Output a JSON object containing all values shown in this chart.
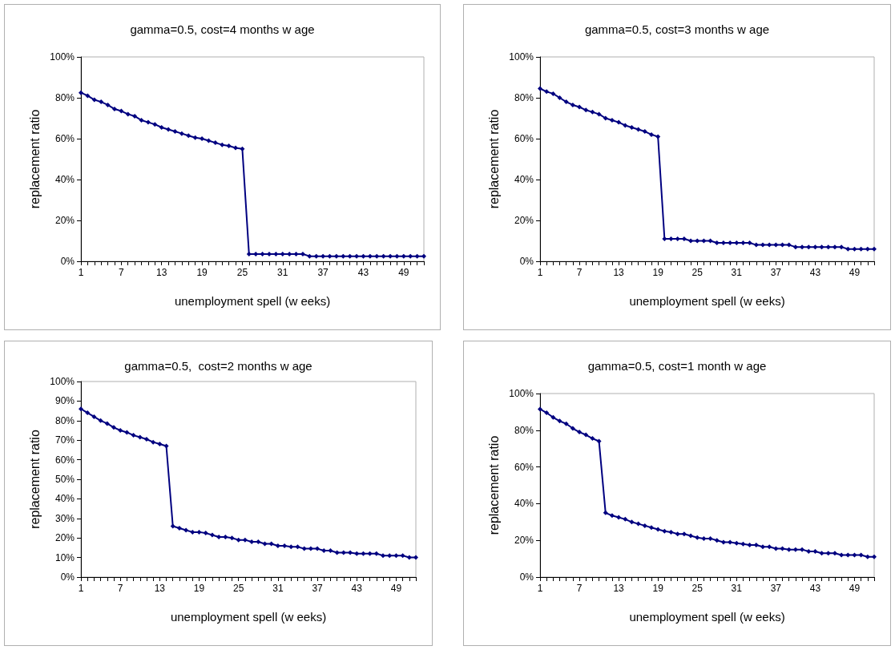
{
  "chart_data": [
    {
      "type": "line",
      "title": "gamma=0.5, cost=4 months w age",
      "xlabel": "unemployment spell (w eeks)",
      "ylabel": "replacement ratio",
      "categories": [
        "1",
        null,
        null,
        null,
        null,
        null,
        "7",
        null,
        null,
        null,
        null,
        null,
        "13",
        null,
        null,
        null,
        null,
        null,
        "19",
        null,
        null,
        null,
        null,
        null,
        "25",
        null,
        null,
        null,
        null,
        null,
        "31",
        null,
        null,
        null,
        null,
        null,
        "37",
        null,
        null,
        null,
        null,
        null,
        "43",
        null,
        null,
        null,
        null,
        null,
        "49",
        null,
        null,
        null
      ],
      "series": [
        {
          "color": "#000080",
          "values": [
            82.5,
            81,
            79,
            78,
            76.5,
            74.5,
            73.5,
            72,
            71,
            69,
            68,
            67,
            65.5,
            64.5,
            63.5,
            62.5,
            61.5,
            60.5,
            60,
            59,
            58,
            57,
            56.5,
            55.5,
            55,
            3.5,
            3.5,
            3.5,
            3.5,
            3.5,
            3.5,
            3.5,
            3.5,
            3.5,
            2.5,
            2.5,
            2.5,
            2.5,
            2.5,
            2.5,
            2.5,
            2.5,
            2.5,
            2.5,
            2.5,
            2.5,
            2.5,
            2.5,
            2.5,
            2.5,
            2.5,
            2.5
          ]
        }
      ],
      "ylim": [
        0,
        100
      ],
      "yticks": [
        {
          "value": 0,
          "label": "0%"
        },
        {
          "value": 20,
          "label": "20%"
        },
        {
          "value": 40,
          "label": "40%"
        },
        {
          "value": 60,
          "label": "60%"
        },
        {
          "value": 80,
          "label": "80%"
        },
        {
          "value": 100,
          "label": "100%"
        }
      ],
      "grid": false,
      "marker": "diamond",
      "line_style": "solid"
    },
    {
      "type": "line",
      "title": "gamma=0.5, cost=3 months w age",
      "xlabel": "unemployment spell (w eeks)",
      "ylabel": "replacement ratio",
      "categories": [
        "1",
        null,
        null,
        null,
        null,
        null,
        "7",
        null,
        null,
        null,
        null,
        null,
        "13",
        null,
        null,
        null,
        null,
        null,
        "19",
        null,
        null,
        null,
        null,
        null,
        "25",
        null,
        null,
        null,
        null,
        null,
        "31",
        null,
        null,
        null,
        null,
        null,
        "37",
        null,
        null,
        null,
        null,
        null,
        "43",
        null,
        null,
        null,
        null,
        null,
        "49",
        null,
        null,
        null
      ],
      "series": [
        {
          "color": "#000080",
          "values": [
            84.5,
            83,
            82,
            80,
            78,
            76.5,
            75.5,
            74,
            73,
            72,
            70,
            69,
            68,
            66.5,
            65.5,
            64.5,
            63.5,
            62,
            61,
            11,
            11,
            11,
            11,
            10,
            10,
            10,
            10,
            9,
            9,
            9,
            9,
            9,
            9,
            8,
            8,
            8,
            8,
            8,
            8,
            7,
            7,
            7,
            7,
            7,
            7,
            7,
            7,
            6,
            6,
            6,
            6,
            6
          ]
        }
      ],
      "ylim": [
        0,
        100
      ],
      "yticks": [
        {
          "value": 0,
          "label": "0%"
        },
        {
          "value": 20,
          "label": "20%"
        },
        {
          "value": 40,
          "label": "40%"
        },
        {
          "value": 60,
          "label": "60%"
        },
        {
          "value": 80,
          "label": "80%"
        },
        {
          "value": 100,
          "label": "100%"
        }
      ],
      "grid": false,
      "marker": "diamond",
      "line_style": "solid"
    },
    {
      "type": "line",
      "title": "gamma=0.5,  cost=2 months w age",
      "xlabel": "unemployment spell (w eeks)",
      "ylabel": "replacement ratio",
      "categories": [
        "1",
        null,
        null,
        null,
        null,
        null,
        "7",
        null,
        null,
        null,
        null,
        null,
        "13",
        null,
        null,
        null,
        null,
        null,
        "19",
        null,
        null,
        null,
        null,
        null,
        "25",
        null,
        null,
        null,
        null,
        null,
        "31",
        null,
        null,
        null,
        null,
        null,
        "37",
        null,
        null,
        null,
        null,
        null,
        "43",
        null,
        null,
        null,
        null,
        null,
        "49",
        null,
        null,
        null
      ],
      "series": [
        {
          "color": "#000080",
          "values": [
            86,
            84,
            82,
            80,
            78.5,
            76.5,
            75,
            74,
            72.5,
            71.5,
            70.5,
            69,
            68,
            67,
            26,
            25,
            24,
            23,
            23,
            22.5,
            21.5,
            20.5,
            20.5,
            20,
            19,
            19,
            18,
            18,
            17,
            17,
            16,
            16,
            15.5,
            15.5,
            14.5,
            14.5,
            14.5,
            13.5,
            13.5,
            12.5,
            12.5,
            12.5,
            12,
            12,
            12,
            12,
            11,
            11,
            11,
            11,
            10,
            10
          ]
        }
      ],
      "ylim": [
        0,
        100
      ],
      "yticks": [
        {
          "value": 0,
          "label": "0%"
        },
        {
          "value": 10,
          "label": "10%"
        },
        {
          "value": 20,
          "label": "20%"
        },
        {
          "value": 30,
          "label": "30%"
        },
        {
          "value": 40,
          "label": "40%"
        },
        {
          "value": 50,
          "label": "50%"
        },
        {
          "value": 60,
          "label": "60%"
        },
        {
          "value": 70,
          "label": "70%"
        },
        {
          "value": 80,
          "label": "80%"
        },
        {
          "value": 90,
          "label": "90%"
        },
        {
          "value": 100,
          "label": "100%"
        }
      ],
      "grid": false,
      "marker": "diamond",
      "line_style": "solid"
    },
    {
      "type": "line",
      "title": "gamma=0.5, cost=1 month w age",
      "xlabel": "unemployment spell (w eeks)",
      "ylabel": "replacement ratio",
      "categories": [
        "1",
        null,
        null,
        null,
        null,
        null,
        "7",
        null,
        null,
        null,
        null,
        null,
        "13",
        null,
        null,
        null,
        null,
        null,
        "19",
        null,
        null,
        null,
        null,
        null,
        "25",
        null,
        null,
        null,
        null,
        null,
        "31",
        null,
        null,
        null,
        null,
        null,
        "37",
        null,
        null,
        null,
        null,
        null,
        "43",
        null,
        null,
        null,
        null,
        null,
        "49",
        null,
        null,
        null
      ],
      "series": [
        {
          "color": "#000080",
          "values": [
            91.5,
            89.5,
            87,
            85,
            83.5,
            81,
            79,
            77.5,
            75.5,
            74,
            35,
            33.5,
            32.5,
            31.5,
            30,
            29,
            28,
            27,
            26,
            25,
            24.5,
            23.5,
            23.5,
            22.5,
            21.5,
            21,
            21,
            20,
            19,
            19,
            18.5,
            18,
            17.5,
            17.5,
            16.5,
            16.5,
            15.5,
            15.5,
            15,
            15,
            15,
            14,
            14,
            13,
            13,
            13,
            12,
            12,
            12,
            12,
            11,
            11
          ]
        }
      ],
      "ylim": [
        0,
        100
      ],
      "yticks": [
        {
          "value": 0,
          "label": "0%"
        },
        {
          "value": 20,
          "label": "20%"
        },
        {
          "value": 40,
          "label": "40%"
        },
        {
          "value": 60,
          "label": "60%"
        },
        {
          "value": 80,
          "label": "80%"
        },
        {
          "value": 100,
          "label": "100%"
        }
      ],
      "grid": false,
      "marker": "diamond",
      "line_style": "solid"
    }
  ]
}
